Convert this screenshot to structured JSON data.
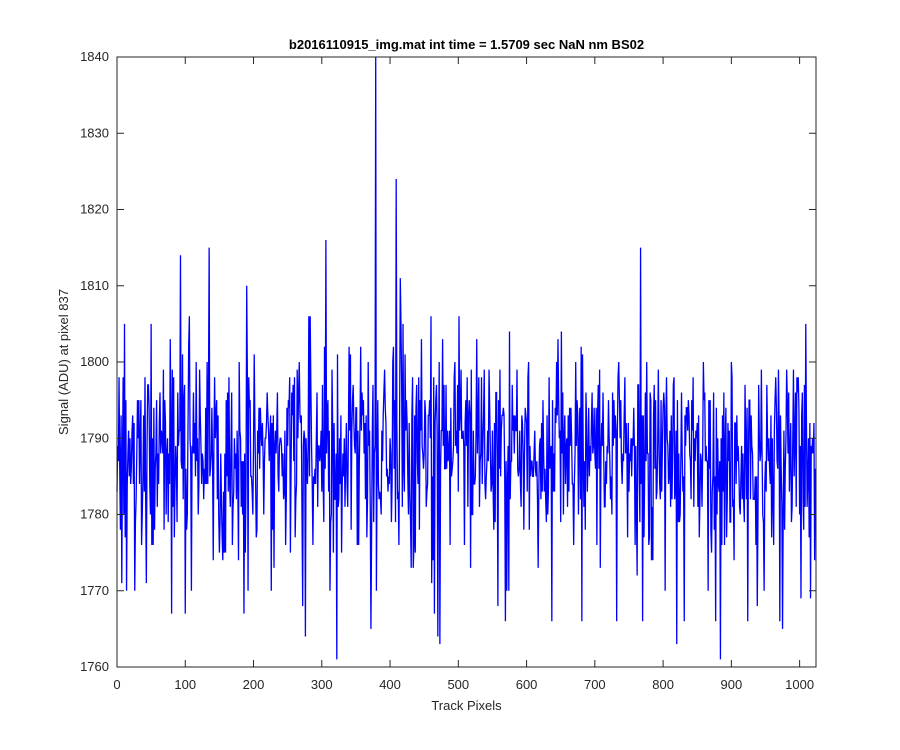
{
  "chart_data": {
    "type": "line",
    "title": "b2016110915_img.mat int time = 1.5709 sec  NaN nm BS02",
    "xlabel": "Track Pixels",
    "ylabel": "Signal (ADU) at pixel 837",
    "xlim": [
      0,
      1024
    ],
    "ylim": [
      1760,
      1840
    ],
    "xticks": [
      0,
      100,
      200,
      300,
      400,
      500,
      600,
      700,
      800,
      900,
      1000
    ],
    "yticks": [
      1760,
      1770,
      1780,
      1790,
      1800,
      1810,
      1820,
      1830,
      1840
    ],
    "grid": false,
    "series": [
      {
        "color": "#0000ff",
        "line_style": "solid",
        "n_points": 1024,
        "baseline_mean": 1788,
        "noise_sd": 7,
        "x": [
          0,
          5,
          11,
          14,
          29,
          50,
          66,
          80,
          93,
          100,
          118,
          125,
          135,
          141,
          179,
          186,
          190,
          197,
          226,
          239,
          261,
          272,
          276,
          306,
          317,
          322,
          340,
          352,
          372,
          379,
          381,
          400,
          409,
          415,
          434,
          465,
          470,
          473,
          488,
          558,
          569,
          637,
          681,
          732,
          767,
          770,
          820,
          831,
          877,
          884,
          924,
          938,
          971,
          975,
          1002,
          1009,
          1016,
          1022
        ],
        "y": [
          1783,
          1778,
          1805,
          1770,
          1788,
          1805,
          1790,
          1767,
          1814,
          1767,
          1790,
          1788,
          1815,
          1774,
          1800,
          1767,
          1810,
          1785,
          1770,
          1790,
          1777,
          1768,
          1764,
          1816,
          1775,
          1761,
          1802,
          1776,
          1765,
          1840,
          1785,
          1790,
          1824,
          1811,
          1773,
          1767,
          1764,
          1763,
          1776,
          1768,
          1766,
          1766,
          1766,
          1766,
          1815,
          1766,
          1763,
          1766,
          1766,
          1761,
          1766,
          1768,
          1766,
          1765,
          1769,
          1805,
          1769,
          1774
        ]
      }
    ]
  }
}
